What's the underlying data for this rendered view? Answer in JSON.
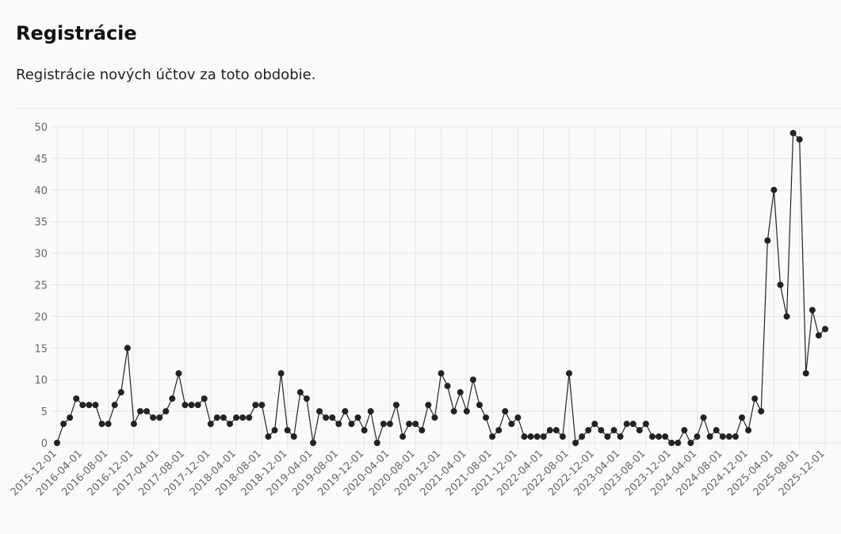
{
  "header": {
    "title": "Registrácie",
    "description": "Registrácie nových účtov za toto obdobie."
  },
  "chart_data": {
    "type": "line",
    "categories": [
      "2015-12-01",
      null,
      null,
      null,
      "2016-04-01",
      null,
      null,
      null,
      "2016-08-01",
      null,
      null,
      null,
      "2016-12-01",
      null,
      null,
      null,
      "2017-04-01",
      null,
      null,
      null,
      "2017-08-01",
      null,
      null,
      null,
      "2017-12-01",
      null,
      null,
      null,
      "2018-04-01",
      null,
      null,
      null,
      "2018-08-01",
      null,
      null,
      null,
      "2018-12-01",
      null,
      null,
      null,
      "2019-04-01",
      null,
      null,
      null,
      "2019-08-01",
      null,
      null,
      null,
      "2019-12-01",
      null,
      null,
      null,
      "2020-04-01",
      null,
      null,
      null,
      "2020-08-01",
      null,
      null,
      null,
      "2020-12-01",
      null,
      null,
      null,
      "2021-04-01",
      null,
      null,
      null,
      "2021-08-01",
      null,
      null,
      null,
      "2021-12-01",
      null,
      null,
      null,
      "2022-04-01",
      null,
      null,
      null,
      "2022-08-01",
      null,
      null,
      null,
      "2022-12-01",
      null,
      null,
      null,
      "2023-04-01",
      null,
      null,
      null,
      "2023-08-01",
      null,
      null,
      null,
      "2023-12-01",
      null,
      null,
      null,
      "2024-04-01",
      null,
      null,
      null,
      "2024-08-01",
      null,
      null,
      null,
      "2024-12-01",
      null,
      null,
      null,
      "2025-04-01",
      null,
      null,
      null,
      "2025-08-01",
      null,
      null,
      null,
      "2025-12-01"
    ],
    "series": [
      {
        "color": "#222222",
        "values": [
          0,
          3,
          4,
          7,
          6,
          6,
          6,
          3,
          3,
          6,
          8,
          15,
          3,
          5,
          5,
          4,
          4,
          5,
          7,
          11,
          6,
          6,
          6,
          7,
          3,
          4,
          4,
          3,
          4,
          4,
          4,
          6,
          6,
          1,
          2,
          11,
          2,
          1,
          8,
          7,
          0,
          5,
          4,
          4,
          3,
          5,
          3,
          4,
          2,
          5,
          0,
          3,
          3,
          6,
          1,
          3,
          3,
          2,
          6,
          4,
          11,
          9,
          5,
          8,
          5,
          10,
          6,
          4,
          1,
          2,
          5,
          3,
          4,
          1,
          1,
          1,
          1,
          2,
          2,
          1,
          11,
          0,
          1,
          2,
          3,
          2,
          1,
          2,
          1,
          3,
          3,
          2,
          3,
          1,
          1,
          1,
          0,
          0,
          2,
          0,
          1,
          4,
          1,
          2,
          1,
          1,
          1,
          4,
          2,
          7,
          5,
          32,
          40,
          25,
          20,
          49,
          48,
          11,
          21,
          17,
          18
        ]
      }
    ],
    "ylim": [
      0,
      50
    ],
    "yticks": [
      0,
      5,
      10,
      15,
      20,
      25,
      30,
      35,
      40,
      45,
      50
    ],
    "grid": true
  }
}
